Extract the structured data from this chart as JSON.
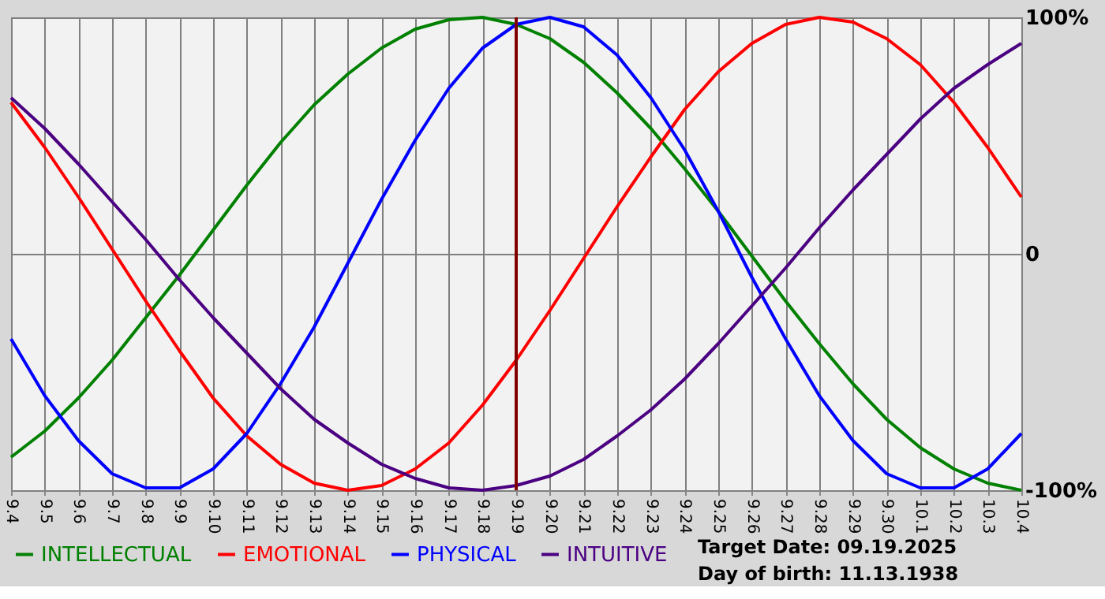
{
  "chart_data": {
    "type": "line",
    "categories": [
      "9.4",
      "9.5",
      "9.6",
      "9.7",
      "9.8",
      "9.9",
      "9.10",
      "9.11",
      "9.12",
      "9.13",
      "9.14",
      "9.15",
      "9.16",
      "9.17",
      "9.18",
      "9.19",
      "9.20",
      "9.21",
      "9.22",
      "9.23",
      "9.24",
      "9.25",
      "9.26",
      "9.27",
      "9.28",
      "9.29",
      "9.30",
      "10.1",
      "10.2",
      "10.3",
      "10.4"
    ],
    "series": [
      {
        "name": "INTELLECTUAL",
        "color": "#008000",
        "values": [
          -86,
          -75,
          -61,
          -45,
          -27,
          -9,
          10,
          29,
          47,
          63,
          76,
          87,
          95,
          99,
          100,
          97,
          91,
          81,
          68,
          53,
          36,
          18,
          -1,
          -20,
          -38,
          -55,
          -70,
          -82,
          -91,
          -97,
          -100
        ]
      },
      {
        "name": "EMOTIONAL",
        "color": "#ff0000",
        "values": [
          64,
          45,
          24,
          2,
          -20,
          -41,
          -61,
          -77,
          -89,
          -97,
          -100,
          -98,
          -91,
          -80,
          -64,
          -45,
          -24,
          -2,
          20,
          41,
          61,
          77,
          89,
          97,
          100,
          98,
          91,
          80,
          64,
          45,
          24
        ]
      },
      {
        "name": "PHYSICAL",
        "color": "#0000ff",
        "values": [
          -36,
          -60,
          -79,
          -93,
          -99,
          -99,
          -91,
          -76,
          -55,
          -31,
          -4,
          23,
          48,
          70,
          87,
          97,
          100,
          96,
          84,
          66,
          44,
          18,
          -10,
          -36,
          -60,
          -79,
          -93,
          -99,
          -99,
          -91,
          -76
        ]
      },
      {
        "name": "INTUITIVE",
        "color": "#4b0082",
        "values": [
          66,
          53,
          38,
          22,
          6,
          -11,
          -27,
          -42,
          -57,
          -70,
          -80,
          -89,
          -95,
          -99,
          -100,
          -98,
          -94,
          -87,
          -77,
          -66,
          -53,
          -38,
          -22,
          -6,
          11,
          27,
          42,
          57,
          70,
          80,
          89
        ]
      }
    ],
    "ylim": [
      -100,
      100
    ],
    "yticks": [
      {
        "value": 100,
        "label": "100%"
      },
      0,
      {
        "value": -100,
        "label": "-100%"
      }
    ],
    "ref_lines": [
      {
        "axis": "x",
        "value": "9.19",
        "color": "#800000"
      }
    ],
    "annotations": [
      "Target Date: 09.19.2025",
      "Day of birth: 11.13.1938"
    ],
    "grid": true,
    "legend": "bottom",
    "marker": "none",
    "line_style": "solid"
  }
}
